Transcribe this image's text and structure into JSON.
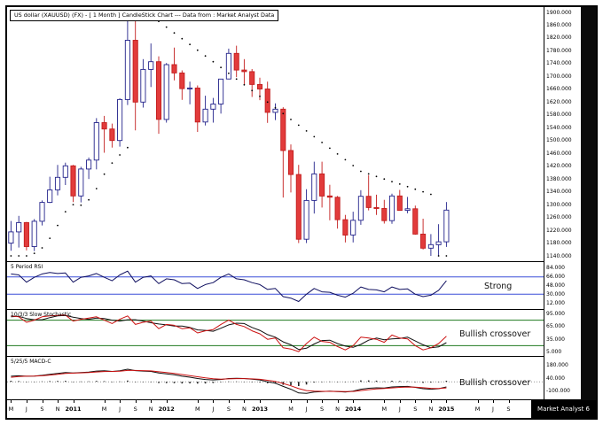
{
  "title": "US dollar (XAUUSD) (FX) -  [ 1 Month ] CandleStick Chart --- Data from : Market Analyst Data",
  "branding": "Market Analyst 6",
  "main_axis": {
    "labels": [
      "1900.000",
      "1860.000",
      "1820.000",
      "1780.000",
      "1740.000",
      "1700.000",
      "1660.000",
      "1620.000",
      "1580.000",
      "1540.000",
      "1500.000",
      "1460.000",
      "1420.000",
      "1380.000",
      "1340.000",
      "1300.000",
      "1260.000",
      "1220.000",
      "1180.000",
      "1140.000"
    ]
  },
  "panels": {
    "rsi": {
      "title": "5 Period RSI",
      "annotation": "Strong",
      "labels": [
        "84.000",
        "66.000",
        "48.000",
        "30.000",
        "12.000"
      ]
    },
    "stoch": {
      "title": "10/3/3 Slow Stochastic",
      "annotation": "Bullish crossover",
      "labels": [
        "95.000",
        "65.000",
        "35.000",
        "5.000"
      ]
    },
    "macd": {
      "title": "5/25/5 MACD-C",
      "annotation": "Bullish crossover",
      "labels": [
        "180.000",
        "40.000",
        "-100.000"
      ]
    }
  },
  "x_axis": {
    "ticks": [
      {
        "i": 0,
        "t": "M"
      },
      {
        "i": 2,
        "t": "J"
      },
      {
        "i": 4,
        "t": "S"
      },
      {
        "i": 6,
        "t": "N"
      },
      {
        "i": 8,
        "t": "2011"
      },
      {
        "i": 12,
        "t": "M"
      },
      {
        "i": 14,
        "t": "J"
      },
      {
        "i": 16,
        "t": "S"
      },
      {
        "i": 18,
        "t": "N"
      },
      {
        "i": 20,
        "t": "2012"
      },
      {
        "i": 24,
        "t": "M"
      },
      {
        "i": 26,
        "t": "J"
      },
      {
        "i": 28,
        "t": "S"
      },
      {
        "i": 30,
        "t": "N"
      },
      {
        "i": 32,
        "t": "2013"
      },
      {
        "i": 36,
        "t": "M"
      },
      {
        "i": 38,
        "t": "J"
      },
      {
        "i": 40,
        "t": "S"
      },
      {
        "i": 42,
        "t": "N"
      },
      {
        "i": 44,
        "t": "2014"
      },
      {
        "i": 48,
        "t": "M"
      },
      {
        "i": 50,
        "t": "J"
      },
      {
        "i": 52,
        "t": "S"
      },
      {
        "i": 54,
        "t": "N"
      },
      {
        "i": 56,
        "t": "2015"
      },
      {
        "i": 60,
        "t": "M"
      },
      {
        "i": 62,
        "t": "J"
      },
      {
        "i": 64,
        "t": "S"
      }
    ]
  },
  "chart_data": {
    "type": "candlestick",
    "title": "US dollar (XAUUSD) (FX) - [ 1 Month ] CandleStick Chart",
    "symbol": "XAUUSD",
    "interval": "1 Month",
    "ylim": [
      1140,
      1900
    ],
    "candles_ohlc": [
      [
        1180,
        1249,
        1156,
        1215
      ],
      [
        1215,
        1265,
        1166,
        1244
      ],
      [
        1244,
        1246,
        1157,
        1169
      ],
      [
        1169,
        1255,
        1155,
        1248
      ],
      [
        1248,
        1313,
        1235,
        1307
      ],
      [
        1307,
        1387,
        1305,
        1346
      ],
      [
        1346,
        1424,
        1329,
        1385
      ],
      [
        1385,
        1431,
        1361,
        1421
      ],
      [
        1421,
        1424,
        1308,
        1327
      ],
      [
        1327,
        1418,
        1307,
        1411
      ],
      [
        1411,
        1447,
        1380,
        1439
      ],
      [
        1439,
        1570,
        1410,
        1556
      ],
      [
        1556,
        1577,
        1462,
        1536
      ],
      [
        1536,
        1553,
        1478,
        1500
      ],
      [
        1500,
        1632,
        1481,
        1628
      ],
      [
        1628,
        1913,
        1611,
        1813
      ],
      [
        1813,
        1922,
        1532,
        1620
      ],
      [
        1620,
        1754,
        1603,
        1722
      ],
      [
        1722,
        1803,
        1667,
        1746
      ],
      [
        1746,
        1763,
        1521,
        1566
      ],
      [
        1566,
        1742,
        1556,
        1737
      ],
      [
        1737,
        1790,
        1688,
        1711
      ],
      [
        1711,
        1719,
        1627,
        1662
      ],
      [
        1662,
        1684,
        1613,
        1664
      ],
      [
        1664,
        1672,
        1527,
        1558
      ],
      [
        1558,
        1640,
        1547,
        1598
      ],
      [
        1598,
        1633,
        1556,
        1614
      ],
      [
        1614,
        1692,
        1584,
        1692
      ],
      [
        1692,
        1787,
        1691,
        1772
      ],
      [
        1772,
        1796,
        1698,
        1720
      ],
      [
        1720,
        1754,
        1672,
        1715
      ],
      [
        1715,
        1723,
        1636,
        1675
      ],
      [
        1675,
        1696,
        1626,
        1661
      ],
      [
        1661,
        1684,
        1555,
        1588
      ],
      [
        1588,
        1616,
        1564,
        1598
      ],
      [
        1598,
        1604,
        1322,
        1469
      ],
      [
        1469,
        1488,
        1338,
        1394
      ],
      [
        1394,
        1424,
        1180,
        1192
      ],
      [
        1192,
        1348,
        1180,
        1313
      ],
      [
        1313,
        1434,
        1272,
        1396
      ],
      [
        1396,
        1434,
        1291,
        1327
      ],
      [
        1327,
        1362,
        1251,
        1323
      ],
      [
        1323,
        1327,
        1225,
        1253
      ],
      [
        1253,
        1268,
        1182,
        1205
      ],
      [
        1205,
        1278,
        1182,
        1251
      ],
      [
        1251,
        1345,
        1237,
        1326
      ],
      [
        1326,
        1392,
        1282,
        1291
      ],
      [
        1291,
        1331,
        1268,
        1288
      ],
      [
        1288,
        1315,
        1241,
        1250
      ],
      [
        1250,
        1334,
        1240,
        1327
      ],
      [
        1327,
        1346,
        1281,
        1282
      ],
      [
        1282,
        1324,
        1273,
        1287
      ],
      [
        1287,
        1297,
        1206,
        1208
      ],
      [
        1208,
        1256,
        1160,
        1164
      ],
      [
        1164,
        1208,
        1131,
        1175
      ],
      [
        1175,
        1239,
        1141,
        1184
      ],
      [
        1184,
        1308,
        1168,
        1283
      ]
    ],
    "sar_dots": [
      1100,
      1118,
      1135,
      1148,
      1165,
      1195,
      1235,
      1278,
      1300,
      1298,
      1315,
      1350,
      1395,
      1430,
      1455,
      1478,
      1925,
      1908,
      1890,
      1872,
      1854,
      1836,
      1818,
      1800,
      1782,
      1764,
      1746,
      1728,
      1710,
      1692,
      1674,
      1656,
      1638,
      1620,
      1602,
      1584,
      1566,
      1548,
      1530,
      1512,
      1494,
      1476,
      1458,
      1440,
      1422,
      1404,
      1396,
      1388,
      1380,
      1372,
      1364,
      1356,
      1348,
      1340,
      1332,
      1130,
      1140
    ],
    "indicators": {
      "rsi": {
        "ylim": [
          3,
          93
        ],
        "hlines": [
          66,
          30
        ],
        "values": [
          72,
          70,
          55,
          65,
          72,
          75,
          73,
          74,
          55,
          65,
          68,
          73,
          65,
          58,
          70,
          78,
          55,
          65,
          68,
          52,
          62,
          60,
          52,
          53,
          42,
          50,
          54,
          65,
          72,
          62,
          60,
          54,
          50,
          40,
          42,
          25,
          22,
          15,
          30,
          42,
          35,
          34,
          28,
          24,
          32,
          45,
          40,
          39,
          35,
          45,
          40,
          41,
          30,
          25,
          28,
          38,
          58
        ]
      },
      "stochastic": {
        "ylim": [
          0,
          100
        ],
        "hlines": [
          80,
          20
        ],
        "k": [
          90,
          88,
          75,
          80,
          88,
          90,
          91,
          92,
          78,
          82,
          85,
          88,
          80,
          72,
          82,
          90,
          70,
          75,
          78,
          60,
          70,
          68,
          60,
          62,
          50,
          55,
          58,
          70,
          80,
          70,
          65,
          55,
          48,
          35,
          38,
          15,
          12,
          6,
          25,
          40,
          30,
          28,
          18,
          10,
          20,
          40,
          38,
          35,
          28,
          45,
          38,
          36,
          20,
          10,
          15,
          25,
          42
        ],
        "d": [
          88,
          89,
          84,
          81,
          81,
          86,
          90,
          91,
          87,
          84,
          82,
          85,
          84,
          80,
          78,
          81,
          81,
          78,
          74,
          71,
          69,
          66,
          66,
          63,
          57,
          56,
          54,
          61,
          69,
          73,
          72,
          63,
          56,
          46,
          40,
          29,
          22,
          11,
          14,
          24,
          32,
          33,
          25,
          19,
          16,
          23,
          33,
          38,
          34,
          36,
          37,
          40,
          31,
          22,
          15,
          17,
          27
        ]
      },
      "macd": {
        "ylim": [
          -170,
          250
        ],
        "zero": 0,
        "macd": [
          60,
          65,
          60,
          62,
          70,
          80,
          90,
          100,
          95,
          100,
          105,
          115,
          118,
          112,
          118,
          135,
          120,
          115,
          112,
          95,
          85,
          75,
          60,
          50,
          35,
          25,
          20,
          25,
          35,
          38,
          35,
          28,
          20,
          0,
          -15,
          -50,
          -80,
          -120,
          -125,
          -110,
          -105,
          -100,
          -105,
          -110,
          -100,
          -80,
          -70,
          -65,
          -68,
          -55,
          -52,
          -50,
          -60,
          -75,
          -80,
          -75,
          -55
        ],
        "signal": [
          49,
          57,
          60,
          61,
          65,
          72,
          81,
          90,
          93,
          96,
          100,
          106,
          111,
          112,
          114,
          122,
          122,
          120,
          117,
          108,
          99,
          90,
          78,
          67,
          54,
          43,
          33,
          29,
          31,
          34,
          34,
          31,
          27,
          16,
          4,
          -18,
          -43,
          -74,
          -95,
          -101,
          -103,
          -103,
          -104,
          -106,
          -104,
          -95,
          -85,
          -77,
          -73,
          -66,
          -60,
          -56,
          -57,
          -64,
          -71,
          -73,
          -66
        ]
      }
    },
    "style": {
      "up_fill": "#ffffff",
      "up_stroke": "#22228a",
      "down_fill": "#e23b3b",
      "down_stroke": "#c21d1d",
      "sar": "#000000",
      "rsi_line": "#101060",
      "rsi_hline": "#3b4fd8",
      "stoch_k": "#cc1111",
      "stoch_d": "#111111",
      "stoch_hline": "#1f7a1f",
      "macd_line": "#111111",
      "macd_signal": "#cc1111",
      "hist": "#222222"
    }
  }
}
